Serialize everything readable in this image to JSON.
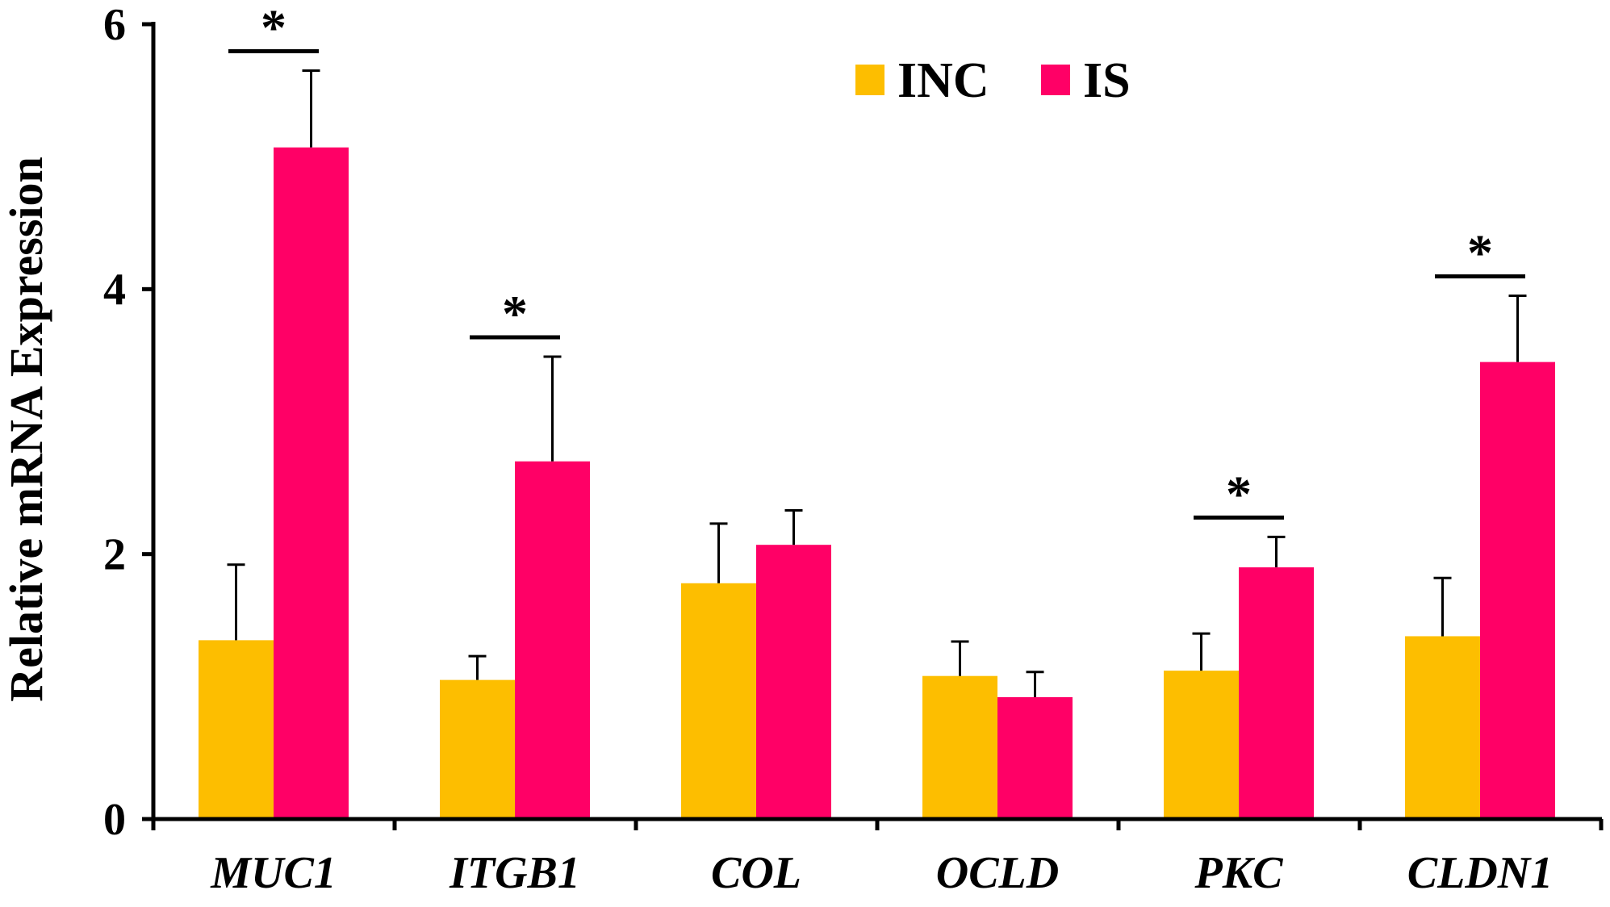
{
  "chart_data": {
    "type": "bar",
    "title": "",
    "xlabel": "",
    "ylabel": "Relative mRNA Expression",
    "ylim": [
      0,
      6
    ],
    "yticks": [
      "0",
      "2",
      "4",
      "6"
    ],
    "grid": false,
    "legend_position": "top-center",
    "categories": [
      "MUC1",
      "ITGB1",
      "COL",
      "OCLD",
      "PKC",
      "CLDN1"
    ],
    "series": [
      {
        "name": "INC",
        "color": "#FDBE00",
        "values": [
          1.35,
          1.05,
          1.78,
          1.08,
          1.12,
          1.38
        ],
        "errors": [
          0.57,
          0.18,
          0.45,
          0.26,
          0.28,
          0.44
        ]
      },
      {
        "name": "IS",
        "color": "#FF0066",
        "values": [
          5.07,
          2.7,
          2.07,
          0.92,
          1.9,
          3.45
        ],
        "errors": [
          0.58,
          0.79,
          0.26,
          0.19,
          0.23,
          0.5
        ]
      }
    ],
    "significance": [
      {
        "category": "MUC1",
        "label": "*"
      },
      {
        "category": "ITGB1",
        "label": "*"
      },
      {
        "category": "PKC",
        "label": "*"
      },
      {
        "category": "CLDN1",
        "label": "*"
      }
    ]
  }
}
